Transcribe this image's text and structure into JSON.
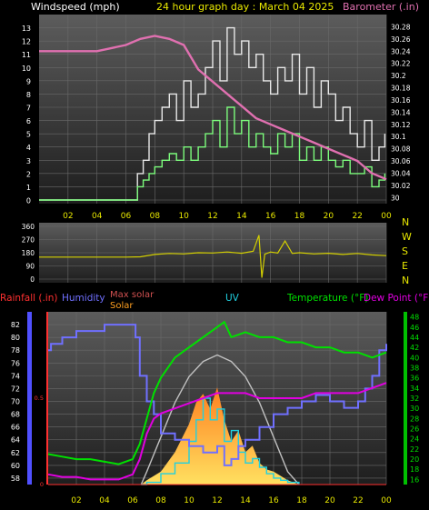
{
  "header": {
    "windspeed_label": "Windspeed (mph)",
    "title": "24 hour graph day : March 04 2025",
    "barometer_label": "Barometer (.in)"
  },
  "bottom_header": {
    "rainfall_label": "Rainfall (.in)",
    "humidity_label": "Humidity",
    "max_solar_label": "Max solar",
    "solar_label": "Solar",
    "uv_label": "UV",
    "temperature_label": "Temperature (°F)",
    "dewpoint_label": "Dew Point (°F)"
  },
  "colors": {
    "background": "#000000",
    "plot_top": "#5a5a5a",
    "plot_bottom": "#232323",
    "wind_gust": "#e8e8e8",
    "wind_avg": "#7cfc7c",
    "barometer": "#e070b0",
    "wind_direction": "#d4d000",
    "humidity": "#7070ff",
    "temperature": "#00e000",
    "dewpoint": "#e000e0",
    "max_solar": "#c0c0c0",
    "solar": "#ffa020",
    "uv": "#20d0e0",
    "rain": "#ff3030",
    "axis_text": "#ffffff",
    "hour_text": "#e8e800"
  },
  "hour_ticks": [
    "02",
    "04",
    "06",
    "08",
    "10",
    "12",
    "14",
    "16",
    "18",
    "20",
    "22",
    "00"
  ],
  "direction_letters": [
    "N",
    "W",
    "S",
    "E",
    "N"
  ],
  "chart_data": [
    {
      "type": "line",
      "name": "wind_barometer",
      "x_unit": "hour",
      "xlim": [
        0,
        24
      ],
      "ylim_left": [
        0,
        14
      ],
      "left_ticks": [
        0,
        1,
        2,
        3,
        4,
        5,
        6,
        7,
        8,
        9,
        10,
        11,
        12,
        13
      ],
      "ylim_right": [
        29.99,
        30.3
      ],
      "right_ticks": [
        "30",
        "30.02",
        "30.04",
        "30.06",
        "30.08",
        "30.1",
        "30.12",
        "30.14",
        "30.16",
        "30.18",
        "30.2",
        "30.22",
        "30.24",
        "30.26",
        "30.28"
      ],
      "series": [
        {
          "name": "gust",
          "x": [
            0,
            6.5,
            6.8,
            7.2,
            7.6,
            8,
            8.5,
            9,
            9.5,
            10,
            10.5,
            11,
            11.5,
            12,
            12.5,
            13,
            13.5,
            14,
            14.5,
            15,
            15.5,
            16,
            16.5,
            17,
            17.5,
            18,
            18.5,
            19,
            19.5,
            20,
            20.5,
            21,
            21.5,
            22,
            22.5,
            23,
            23.5,
            23.9
          ],
          "y": [
            0,
            0,
            2,
            3,
            5,
            6,
            7,
            8,
            6,
            9,
            7,
            8,
            10,
            12,
            9,
            13,
            11,
            12,
            10,
            11,
            9,
            8,
            10,
            9,
            11,
            8,
            10,
            7,
            9,
            8,
            6,
            7,
            5,
            4,
            6,
            3,
            4,
            5
          ]
        },
        {
          "name": "average",
          "x": [
            0,
            6.5,
            6.8,
            7.2,
            7.6,
            8,
            8.5,
            9,
            9.5,
            10,
            10.5,
            11,
            11.5,
            12,
            12.5,
            13,
            13.5,
            14,
            14.5,
            15,
            15.5,
            16,
            16.5,
            17,
            17.5,
            18,
            18.5,
            19,
            19.5,
            20,
            20.5,
            21,
            21.5,
            22,
            22.5,
            23,
            23.5,
            23.9
          ],
          "y": [
            0,
            0,
            1,
            1.5,
            2,
            2.5,
            3,
            3.5,
            3,
            4,
            3,
            4,
            5,
            6,
            4,
            7,
            5,
            6,
            4,
            5,
            4,
            3.5,
            5,
            4,
            5,
            3,
            4,
            3,
            4,
            3,
            2.5,
            3,
            2,
            2,
            2.5,
            1,
            1.5,
            2
          ]
        },
        {
          "name": "barometer",
          "x": [
            0,
            2,
            4,
            5,
            6,
            7,
            8,
            9,
            10,
            11,
            12,
            13,
            14,
            15,
            16,
            17,
            18,
            19,
            20,
            21,
            22,
            23,
            24
          ],
          "y": [
            30.24,
            30.24,
            30.24,
            30.245,
            30.25,
            30.26,
            30.265,
            30.26,
            30.25,
            30.21,
            30.19,
            30.17,
            30.15,
            30.13,
            30.12,
            30.11,
            30.1,
            30.09,
            30.08,
            30.07,
            30.06,
            30.04,
            30.03
          ]
        }
      ]
    },
    {
      "type": "line",
      "name": "wind_direction",
      "x_unit": "hour",
      "xlim": [
        0,
        24
      ],
      "ylim": [
        0,
        360
      ],
      "ticks": [
        0,
        90,
        180,
        270,
        360
      ],
      "series": [
        {
          "name": "direction",
          "x": [
            0,
            6,
            7,
            8,
            9,
            10,
            11,
            12,
            13,
            14,
            14.8,
            15.2,
            15.4,
            15.6,
            16,
            16.5,
            17,
            17.5,
            18,
            19,
            20,
            21,
            22,
            23,
            24
          ],
          "y": [
            150,
            150,
            152,
            168,
            175,
            172,
            180,
            178,
            185,
            176,
            190,
            300,
            10,
            170,
            185,
            178,
            260,
            175,
            180,
            172,
            176,
            168,
            175,
            165,
            160
          ]
        }
      ]
    },
    {
      "type": "line",
      "name": "weather_combined",
      "x_unit": "hour",
      "xlim": [
        0,
        24
      ],
      "humidity_ticks": [
        58,
        60,
        62,
        64,
        66,
        68,
        70,
        72,
        74,
        76,
        78,
        80,
        82
      ],
      "humidity_ylim": [
        57,
        84
      ],
      "temperature_ticks": [
        16,
        18,
        20,
        22,
        24,
        26,
        28,
        30,
        32,
        34,
        36,
        38,
        40,
        42,
        44,
        46,
        48
      ],
      "temperature_ylim": [
        15,
        49
      ],
      "rain_ticks": [
        "0",
        "0.5"
      ],
      "series": [
        {
          "name": "humidity",
          "x": [
            0,
            0.2,
            1,
            2,
            3,
            4,
            5,
            6,
            6.2,
            6.5,
            7,
            7.5,
            8,
            9,
            10,
            11,
            12,
            12.5,
            13,
            13.5,
            14,
            15,
            16,
            17,
            18,
            19,
            20,
            21,
            22,
            22.5,
            23,
            23.5,
            24
          ],
          "y": [
            78,
            79,
            80,
            81,
            81,
            82,
            82,
            82,
            80,
            74,
            70,
            68,
            65,
            64,
            63,
            62,
            63,
            60,
            61,
            63,
            64,
            66,
            68,
            69,
            70,
            71,
            70,
            69,
            70,
            72,
            74,
            78,
            79
          ]
        },
        {
          "name": "temperature",
          "x": [
            0,
            1,
            2,
            3,
            4,
            5,
            6,
            6.5,
            7,
            7.5,
            8,
            9,
            10,
            11,
            12,
            12.5,
            13,
            14,
            15,
            16,
            17,
            18,
            19,
            20,
            21,
            22,
            23,
            24
          ],
          "y": [
            21,
            20.5,
            20,
            20,
            19.5,
            19,
            20,
            23,
            28,
            33,
            36,
            40,
            42,
            44,
            46,
            47,
            44,
            45,
            44,
            44,
            43,
            43,
            42,
            42,
            41,
            41,
            40,
            41
          ]
        },
        {
          "name": "dewpoint",
          "x": [
            0,
            1,
            2,
            3,
            4,
            5,
            6,
            6.5,
            7,
            7.5,
            8,
            9,
            10,
            11,
            12,
            13,
            14,
            15,
            16,
            17,
            18,
            19,
            20,
            21,
            22,
            23,
            24
          ],
          "y": [
            17,
            16.5,
            16.5,
            16,
            16,
            16,
            17,
            20,
            25,
            28,
            29,
            30,
            31,
            32,
            33,
            33,
            33,
            32,
            32,
            32,
            32,
            33,
            33,
            33,
            33,
            34,
            35
          ]
        },
        {
          "name": "max_solar",
          "x": [
            6.6,
            7,
            8,
            9,
            10,
            11,
            12,
            13,
            14,
            15,
            16,
            17,
            17.8
          ],
          "y": [
            0,
            60,
            220,
            380,
            500,
            570,
            600,
            570,
            500,
            380,
            220,
            60,
            0
          ]
        },
        {
          "name": "solar",
          "x": [
            6.6,
            7,
            8,
            9,
            10,
            10.5,
            11,
            11.5,
            12,
            12.5,
            13,
            13.5,
            14,
            14.5,
            15,
            15.5,
            16,
            16.5,
            17,
            17.8
          ],
          "y": [
            0,
            20,
            60,
            150,
            280,
            380,
            420,
            350,
            450,
            300,
            200,
            250,
            150,
            180,
            100,
            70,
            60,
            40,
            20,
            0
          ]
        },
        {
          "name": "uv",
          "x": [
            6.6,
            7,
            8,
            9,
            10,
            10.5,
            11,
            11.5,
            12,
            12.5,
            13,
            13.5,
            14,
            14.5,
            15,
            15.5,
            16,
            16.5,
            17,
            17.8
          ],
          "y": [
            0,
            0.1,
            0.5,
            1,
            2,
            3,
            4,
            3,
            3.5,
            2,
            2.5,
            1.5,
            1,
            1.2,
            0.8,
            0.5,
            0.3,
            0.2,
            0.1,
            0
          ]
        },
        {
          "name": "rainfall",
          "x": [
            0,
            24
          ],
          "y": [
            0,
            0
          ]
        }
      ]
    }
  ]
}
